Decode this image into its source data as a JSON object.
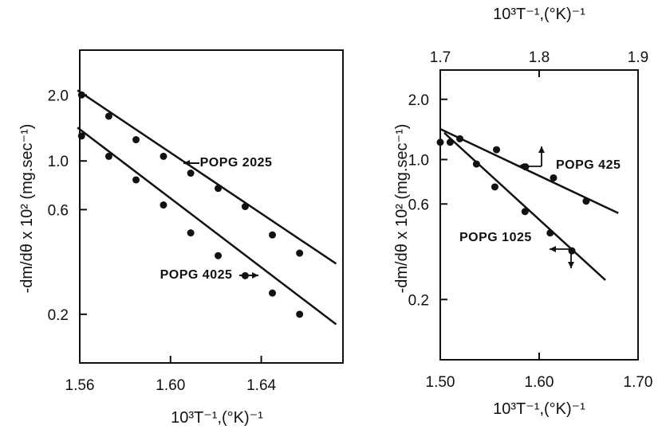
{
  "chart_data": [
    {
      "type": "scatter",
      "title": "",
      "xlabel": "10³T⁻¹,(°K)⁻¹",
      "ylabel": "-dm/dθ x 10² (mg.sec⁻¹)",
      "xlim": [
        1.56,
        1.676
      ],
      "ylim": [
        0.12,
        3.2
      ],
      "yscale": "log",
      "grid": false,
      "legend": "none",
      "x_ticks": [
        1.56,
        1.6,
        1.64
      ],
      "x_tick_labels": [
        "1.56",
        "1.60",
        "1.64"
      ],
      "y_ticks": [
        0.2,
        0.6,
        1.0,
        2.0
      ],
      "y_tick_labels": [
        "0.2",
        "0.6",
        "1.0",
        "2.0"
      ],
      "series": [
        {
          "name": "POPG 2025",
          "x": [
            1.5608,
            1.5728,
            1.5848,
            1.5969,
            1.6089,
            1.621,
            1.6329,
            1.6449,
            1.6569
          ],
          "y": [
            2.0,
            1.6,
            1.25,
            1.05,
            0.88,
            0.75,
            0.62,
            0.46,
            0.38
          ],
          "fit": [
            [
              1.559,
              2.1
            ],
            [
              1.673,
              0.34
            ]
          ]
        },
        {
          "name": "POPG 4025",
          "x": [
            1.5608,
            1.5728,
            1.5848,
            1.5969,
            1.6089,
            1.621,
            1.6329,
            1.6449,
            1.6569
          ],
          "y": [
            1.3,
            1.05,
            0.82,
            0.63,
            0.47,
            0.37,
            0.3,
            0.25,
            0.2
          ],
          "fit": [
            [
              1.559,
              1.42
            ],
            [
              1.673,
              0.18
            ]
          ]
        }
      ]
    },
    {
      "type": "scatter",
      "title": "",
      "xlabel": "10³T⁻¹,(°K)⁻¹",
      "x2label": "10³T⁻¹,(°K)⁻¹",
      "ylabel": "-dm/dθ x 10² (mg.sec⁻¹)",
      "xlim": [
        1.5,
        1.7
      ],
      "x2lim": [
        1.7,
        1.9
      ],
      "ylim": [
        0.1,
        2.8
      ],
      "yscale": "log",
      "grid": false,
      "legend": "none",
      "x_ticks": [
        1.5,
        1.6,
        1.7
      ],
      "x_tick_labels": [
        "1.50",
        "1.60",
        "1.70"
      ],
      "x2_ticks": [
        1.7,
        1.8,
        1.9
      ],
      "x2_tick_labels": [
        "1.7",
        "1.8",
        "1.9"
      ],
      "y_ticks": [
        0.2,
        0.6,
        1.0,
        2.0
      ],
      "y_tick_labels": [
        "0.2",
        "0.6",
        "1.0",
        "2.0"
      ],
      "series": [
        {
          "name": "POPG 425",
          "axis": "top",
          "x": [
            1.7,
            1.7198,
            1.7569,
            1.7862,
            1.8145,
            1.8475
          ],
          "y": [
            1.22,
            1.27,
            1.12,
            0.92,
            0.81,
            0.62
          ],
          "fit": [
            [
              1.7,
              1.42
            ],
            [
              1.88,
              0.54
            ]
          ]
        },
        {
          "name": "POPG 1025",
          "axis": "bottom",
          "x": [
            1.51,
            1.5366,
            1.5552,
            1.5857,
            1.6111,
            1.6331
          ],
          "y": [
            1.22,
            0.95,
            0.73,
            0.55,
            0.43,
            0.35
          ],
          "fit": [
            [
              1.504,
              1.36
            ],
            [
              1.667,
              0.25
            ]
          ]
        }
      ]
    }
  ]
}
